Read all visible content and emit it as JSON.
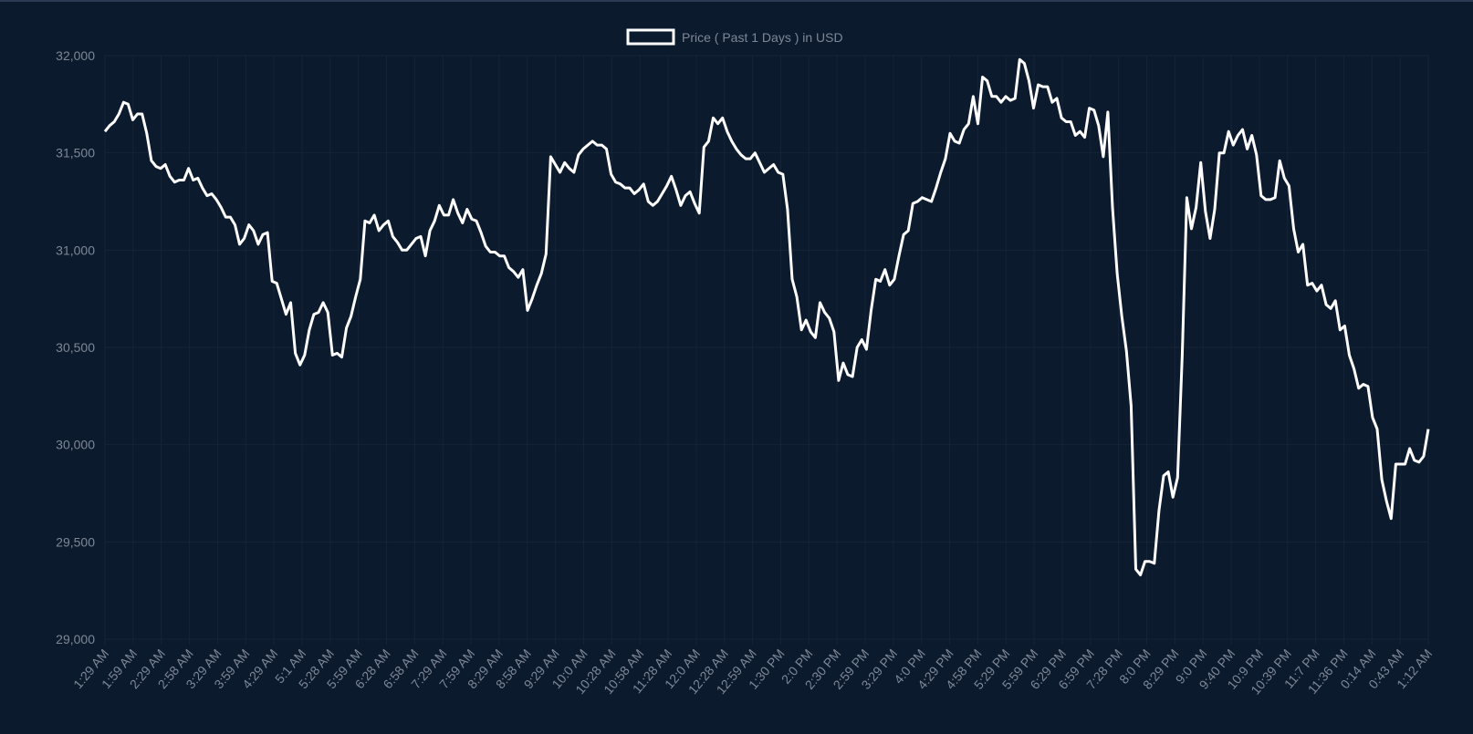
{
  "chart_data": {
    "type": "line",
    "legend": {
      "label": "Price ( Past 1 Days ) in USD",
      "position": "top-center"
    },
    "ylim": [
      29000,
      32000
    ],
    "yticks": [
      29000,
      29500,
      30000,
      30500,
      31000,
      31500,
      32000
    ],
    "ytick_labels": [
      "29,000",
      "29,500",
      "30,000",
      "30,500",
      "31,000",
      "31,500",
      "32,000"
    ],
    "xticks": [
      "1:29 AM",
      "1:59 AM",
      "2:29 AM",
      "2:58 AM",
      "3:29 AM",
      "3:59 AM",
      "4:29 AM",
      "5:1 AM",
      "5:28 AM",
      "5:59 AM",
      "6:28 AM",
      "6:58 AM",
      "7:29 AM",
      "7:59 AM",
      "8:29 AM",
      "8:58 AM",
      "9:29 AM",
      "10:0 AM",
      "10:28 AM",
      "10:58 AM",
      "11:28 AM",
      "12:0 AM",
      "12:28 AM",
      "12:59 AM",
      "1:30 PM",
      "2:0 PM",
      "2:30 PM",
      "2:59 PM",
      "3:29 PM",
      "4:0 PM",
      "4:29 PM",
      "4:58 PM",
      "5:29 PM",
      "5:59 PM",
      "6:29 PM",
      "6:59 PM",
      "7:28 PM",
      "8:0 PM",
      "8:29 PM",
      "9:0 PM",
      "9:40 PM",
      "10:9 PM",
      "10:39 PM",
      "11:7 PM",
      "11:36 PM",
      "0:14 AM",
      "0:43 AM",
      "1:12 AM"
    ],
    "grid": true,
    "series": [
      {
        "name": "Price ( Past 1 Days ) in USD",
        "color": "#ffffff",
        "values": [
          31610,
          31640,
          31660,
          31700,
          31760,
          31750,
          31670,
          31700,
          31700,
          31600,
          31460,
          31430,
          31420,
          31440,
          31380,
          31350,
          31360,
          31360,
          31420,
          31360,
          31370,
          31320,
          31280,
          31290,
          31260,
          31220,
          31170,
          31170,
          31130,
          31030,
          31060,
          31130,
          31100,
          31030,
          31080,
          31090,
          30840,
          30830,
          30750,
          30670,
          30730,
          30470,
          30410,
          30460,
          30590,
          30670,
          30680,
          30730,
          30680,
          30460,
          30470,
          30450,
          30600,
          30660,
          30760,
          30850,
          31150,
          31140,
          31180,
          31100,
          31130,
          31150,
          31070,
          31040,
          31000,
          31000,
          31030,
          31060,
          31070,
          30970,
          31100,
          31150,
          31230,
          31180,
          31180,
          31260,
          31190,
          31140,
          31210,
          31160,
          31150,
          31090,
          31020,
          30990,
          30990,
          30970,
          30970,
          30910,
          30890,
          30860,
          30900,
          30690,
          30750,
          30820,
          30880,
          30980,
          31480,
          31440,
          31400,
          31450,
          31420,
          31400,
          31490,
          31520,
          31540,
          31560,
          31540,
          31540,
          31520,
          31390,
          31350,
          31340,
          31320,
          31320,
          31290,
          31310,
          31340,
          31250,
          31230,
          31250,
          31290,
          31330,
          31380,
          31310,
          31230,
          31280,
          31300,
          31240,
          31190,
          31530,
          31560,
          31680,
          31650,
          31680,
          31610,
          31560,
          31520,
          31490,
          31470,
          31470,
          31500,
          31450,
          31400,
          31420,
          31440,
          31400,
          31390,
          31210,
          30850,
          30760,
          30590,
          30640,
          30580,
          30550,
          30730,
          30680,
          30650,
          30580,
          30330,
          30420,
          30360,
          30350,
          30500,
          30540,
          30490,
          30690,
          30850,
          30840,
          30900,
          30820,
          30850,
          30970,
          31080,
          31100,
          31240,
          31250,
          31270,
          31260,
          31250,
          31320,
          31400,
          31470,
          31600,
          31560,
          31550,
          31620,
          31650,
          31790,
          31650,
          31890,
          31870,
          31790,
          31790,
          31760,
          31790,
          31770,
          31780,
          31980,
          31960,
          31870,
          31730,
          31850,
          31840,
          31840,
          31760,
          31780,
          31680,
          31660,
          31660,
          31590,
          31610,
          31580,
          31730,
          31720,
          31640,
          31480,
          31710,
          31220,
          30880,
          30660,
          30480,
          30200,
          29360,
          29330,
          29400,
          29400,
          29390,
          29660,
          29840,
          29860,
          29730,
          29830,
          30460,
          31270,
          31110,
          31220,
          31450,
          31200,
          31060,
          31210,
          31500,
          31500,
          31610,
          31540,
          31590,
          31620,
          31520,
          31590,
          31490,
          31280,
          31260,
          31260,
          31270,
          31460,
          31370,
          31330,
          31110,
          30990,
          31030,
          30820,
          30830,
          30790,
          30820,
          30720,
          30700,
          30740,
          30590,
          30610,
          30460,
          30390,
          30290,
          30310,
          30300,
          30140,
          30080,
          29820,
          29710,
          29620,
          29900,
          29900,
          29900,
          29980,
          29920,
          29910,
          29940,
          30080
        ]
      }
    ]
  }
}
